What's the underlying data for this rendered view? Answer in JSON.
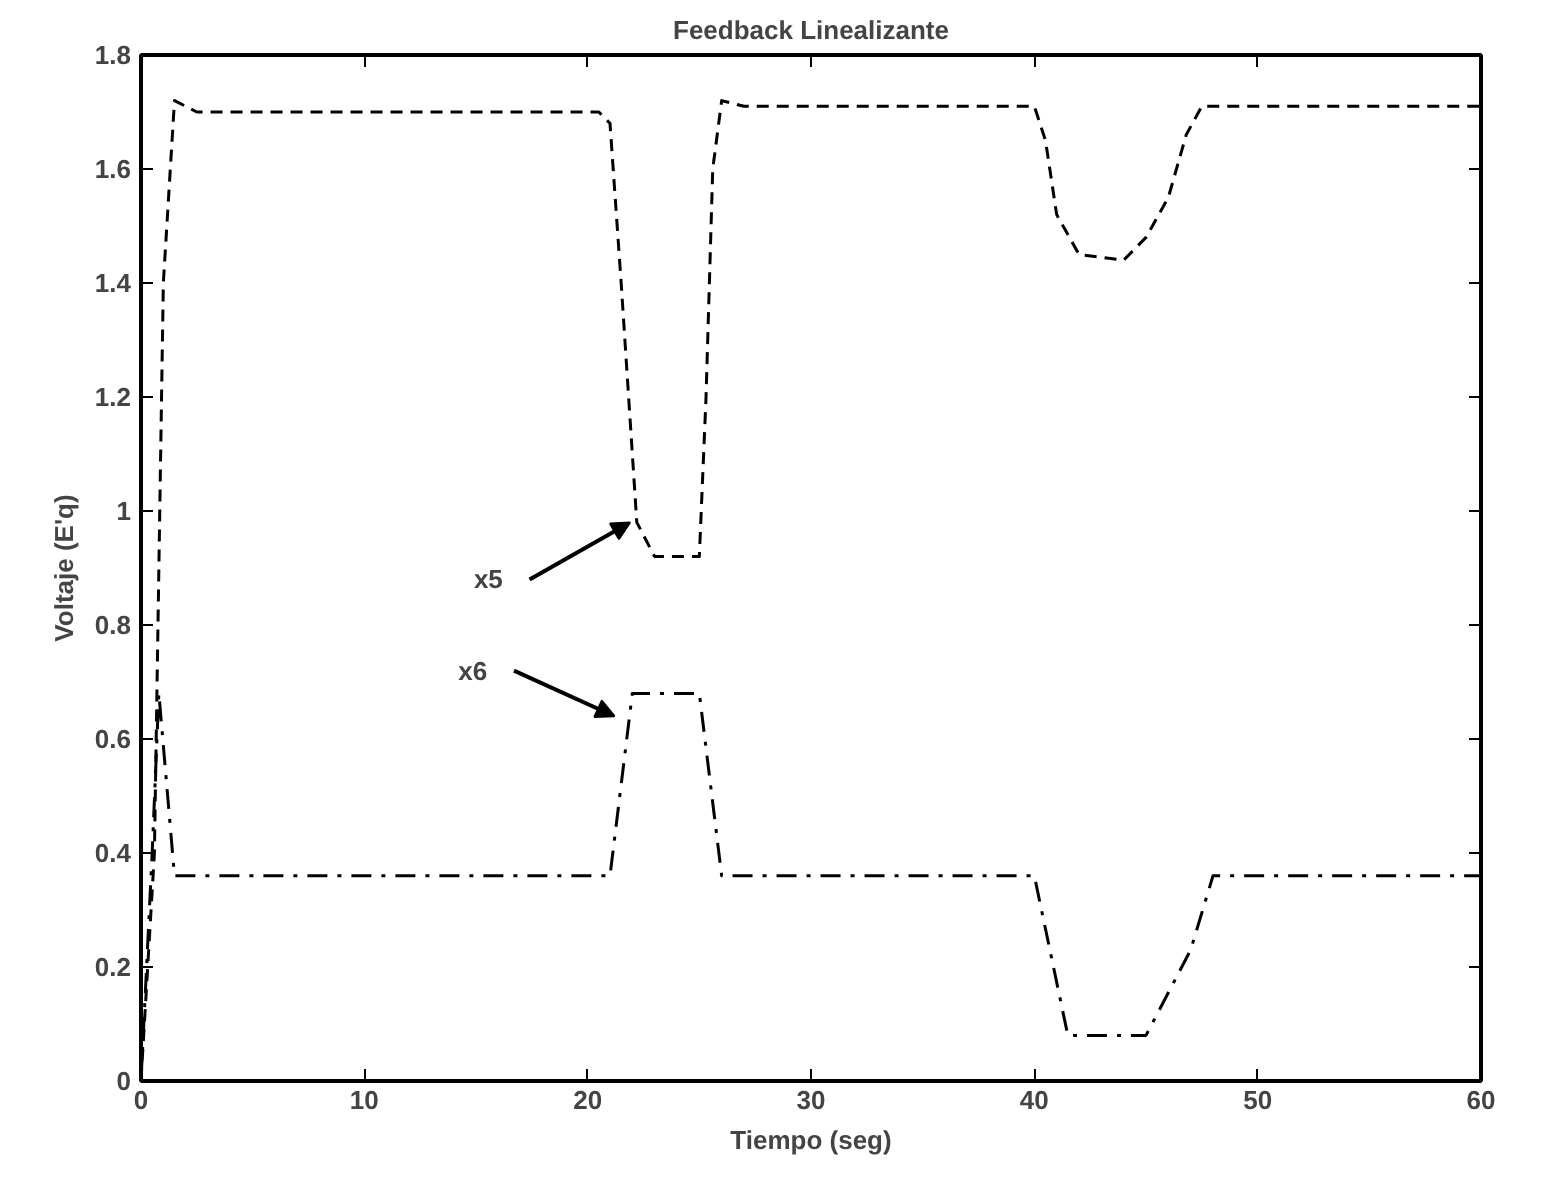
{
  "chart_data": {
    "type": "line",
    "title": "Feedback Linealizante",
    "xlabel": "Tiempo (seg)",
    "ylabel": "Voltaje (E'q)",
    "xlim": [
      0,
      60
    ],
    "ylim": [
      0,
      1.8
    ],
    "xticks": [
      0,
      10,
      20,
      30,
      40,
      50,
      60
    ],
    "yticks": [
      0,
      0.2,
      0.4,
      0.6,
      0.8,
      1,
      1.2,
      1.4,
      1.6,
      1.8
    ],
    "grid": false,
    "marker": "none",
    "series": [
      {
        "color": "#000000",
        "line_style": "dashed",
        "x": [
          0,
          0.6,
          1,
          1.5,
          2.5,
          20.5,
          21,
          21.5,
          22,
          22.2,
          23,
          25,
          25.3,
          25.6,
          26,
          27,
          40,
          40.5,
          41,
          42,
          44,
          45,
          46,
          46.8,
          47.5,
          60
        ],
        "values": [
          0,
          0.4,
          1.4,
          1.72,
          1.7,
          1.7,
          1.68,
          1.4,
          1.1,
          0.98,
          0.92,
          0.92,
          1.2,
          1.6,
          1.72,
          1.71,
          1.71,
          1.65,
          1.52,
          1.45,
          1.44,
          1.48,
          1.55,
          1.66,
          1.71,
          1.71
        ]
      },
      {
        "color": "#000000",
        "line_style": "dashdot",
        "x": [
          0,
          0.5,
          0.8,
          1.5,
          21,
          22,
          25,
          26,
          40,
          41.5,
          45,
          47,
          48,
          60
        ],
        "values": [
          0,
          0.4,
          0.68,
          0.36,
          0.36,
          0.68,
          0.68,
          0.36,
          0.36,
          0.08,
          0.08,
          0.23,
          0.36,
          0.36
        ]
      }
    ],
    "annotations": [
      {
        "text": "x5",
        "x": 22.2,
        "y": 0.98
      },
      {
        "text": "x6",
        "x": 21.5,
        "y": 0.64
      }
    ]
  }
}
